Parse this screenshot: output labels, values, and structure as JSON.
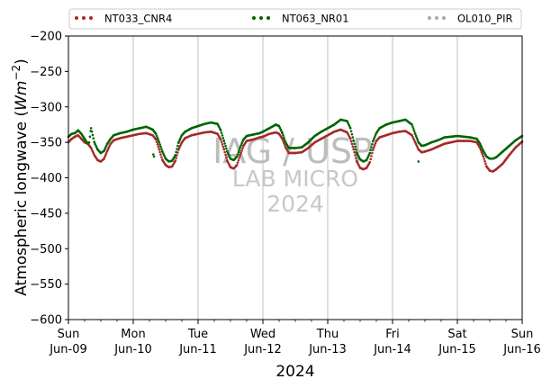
{
  "chart_data": {
    "type": "scatter",
    "xlabel": "2024",
    "ylabel_main": "Atmospheric longwave (",
    "ylabel_unit_W": "W",
    "ylabel_unit_m": "m",
    "ylabel_unit_exp": "−2",
    "ylabel_close": ")",
    "ylim": [
      -600,
      -200
    ],
    "xlim_days": [
      0,
      7
    ],
    "yticks": [
      {
        "value": -200,
        "label": "−200"
      },
      {
        "value": -250,
        "label": "−250"
      },
      {
        "value": -300,
        "label": "−300"
      },
      {
        "value": -350,
        "label": "−350"
      },
      {
        "value": -400,
        "label": "−400"
      },
      {
        "value": -450,
        "label": "−450"
      },
      {
        "value": -500,
        "label": "−500"
      },
      {
        "value": -550,
        "label": "−550"
      },
      {
        "value": -600,
        "label": "−600"
      }
    ],
    "xticks": [
      {
        "day": 0,
        "top": "Sun",
        "bottom": "Jun-09"
      },
      {
        "day": 1,
        "top": "Mon",
        "bottom": "Jun-10"
      },
      {
        "day": 2,
        "top": "Tue",
        "bottom": "Jun-11"
      },
      {
        "day": 3,
        "top": "Wed",
        "bottom": "Jun-12"
      },
      {
        "day": 4,
        "top": "Thu",
        "bottom": "Jun-13"
      },
      {
        "day": 5,
        "top": "Fri",
        "bottom": "Jun-14"
      },
      {
        "day": 6,
        "top": "Sat",
        "bottom": "Jun-15"
      },
      {
        "day": 7,
        "top": "Sun",
        "bottom": "Jun-16"
      }
    ],
    "grid": "vertical",
    "legend_placement": "top",
    "series": [
      {
        "name": "NT033_CNR4",
        "color": "#a52a2a",
        "points": [
          [
            0.0,
            -350
          ],
          [
            0.05,
            -345
          ],
          [
            0.1,
            -342
          ],
          [
            0.15,
            -340
          ],
          [
            0.2,
            -345
          ],
          [
            0.25,
            -350
          ],
          [
            0.3,
            -352
          ],
          [
            0.35,
            -358
          ],
          [
            0.4,
            -368
          ],
          [
            0.45,
            -375
          ],
          [
            0.5,
            -377
          ],
          [
            0.55,
            -373
          ],
          [
            0.6,
            -362
          ],
          [
            0.65,
            -352
          ],
          [
            0.7,
            -347
          ],
          [
            0.8,
            -344
          ],
          [
            0.9,
            -342
          ],
          [
            1.0,
            -340
          ],
          [
            1.1,
            -338
          ],
          [
            1.2,
            -337
          ],
          [
            1.3,
            -340
          ],
          [
            1.35,
            -346
          ],
          [
            1.4,
            -360
          ],
          [
            1.45,
            -375
          ],
          [
            1.5,
            -382
          ],
          [
            1.55,
            -385
          ],
          [
            1.6,
            -384
          ],
          [
            1.65,
            -376
          ],
          [
            1.7,
            -360
          ],
          [
            1.75,
            -350
          ],
          [
            1.8,
            -344
          ],
          [
            1.9,
            -340
          ],
          [
            2.0,
            -338
          ],
          [
            2.1,
            -336
          ],
          [
            2.2,
            -335
          ],
          [
            2.3,
            -338
          ],
          [
            2.35,
            -346
          ],
          [
            2.4,
            -360
          ],
          [
            2.45,
            -376
          ],
          [
            2.5,
            -385
          ],
          [
            2.55,
            -387
          ],
          [
            2.6,
            -382
          ],
          [
            2.65,
            -368
          ],
          [
            2.7,
            -355
          ],
          [
            2.75,
            -348
          ],
          [
            2.85,
            -346
          ],
          [
            2.95,
            -343
          ],
          [
            3.0,
            -342
          ],
          [
            3.1,
            -338
          ],
          [
            3.2,
            -336
          ],
          [
            3.25,
            -338
          ],
          [
            3.3,
            -345
          ],
          [
            3.35,
            -357
          ],
          [
            3.4,
            -365
          ],
          [
            3.5,
            -365
          ],
          [
            3.6,
            -364
          ],
          [
            3.7,
            -358
          ],
          [
            3.8,
            -350
          ],
          [
            3.9,
            -345
          ],
          [
            4.0,
            -340
          ],
          [
            4.1,
            -335
          ],
          [
            4.2,
            -332
          ],
          [
            4.3,
            -336
          ],
          [
            4.35,
            -345
          ],
          [
            4.4,
            -360
          ],
          [
            4.45,
            -377
          ],
          [
            4.5,
            -386
          ],
          [
            4.55,
            -388
          ],
          [
            4.6,
            -386
          ],
          [
            4.65,
            -378
          ],
          [
            4.7,
            -360
          ],
          [
            4.75,
            -348
          ],
          [
            4.8,
            -343
          ],
          [
            4.9,
            -340
          ],
          [
            5.0,
            -337
          ],
          [
            5.1,
            -335
          ],
          [
            5.2,
            -334
          ],
          [
            5.3,
            -340
          ],
          [
            5.35,
            -350
          ],
          [
            5.4,
            -360
          ],
          [
            5.45,
            -364
          ],
          [
            5.5,
            -363
          ],
          [
            5.6,
            -360
          ],
          [
            5.7,
            -356
          ],
          [
            5.8,
            -352
          ],
          [
            5.9,
            -350
          ],
          [
            6.0,
            -348
          ],
          [
            6.1,
            -348
          ],
          [
            6.2,
            -348
          ],
          [
            6.3,
            -350
          ],
          [
            6.35,
            -358
          ],
          [
            6.4,
            -370
          ],
          [
            6.45,
            -384
          ],
          [
            6.5,
            -390
          ],
          [
            6.55,
            -391
          ],
          [
            6.6,
            -388
          ],
          [
            6.7,
            -380
          ],
          [
            6.8,
            -368
          ],
          [
            6.9,
            -357
          ],
          [
            7.0,
            -349
          ]
        ]
      },
      {
        "name": "NT063_NR01",
        "color": "#006400",
        "points": [
          [
            0.0,
            -342
          ],
          [
            0.05,
            -338
          ],
          [
            0.1,
            -337
          ],
          [
            0.15,
            -333
          ],
          [
            0.2,
            -338
          ],
          [
            0.25,
            -345
          ],
          [
            0.3,
            -352
          ],
          [
            0.32,
            -350
          ],
          [
            0.35,
            -330
          ],
          [
            0.4,
            -350
          ],
          [
            0.45,
            -360
          ],
          [
            0.5,
            -365
          ],
          [
            0.55,
            -362
          ],
          [
            0.6,
            -352
          ],
          [
            0.65,
            -345
          ],
          [
            0.7,
            -340
          ],
          [
            0.8,
            -337
          ],
          [
            0.9,
            -335
          ],
          [
            1.0,
            -332
          ],
          [
            1.1,
            -330
          ],
          [
            1.2,
            -328
          ],
          [
            1.3,
            -332
          ],
          [
            1.35,
            -338
          ],
          [
            1.4,
            -350
          ],
          [
            1.45,
            -363
          ],
          [
            1.5,
            -373
          ],
          [
            1.55,
            -377
          ],
          [
            1.6,
            -376
          ],
          [
            1.65,
            -368
          ],
          [
            1.7,
            -350
          ],
          [
            1.75,
            -340
          ],
          [
            1.8,
            -335
          ],
          [
            1.9,
            -330
          ],
          [
            2.0,
            -327
          ],
          [
            2.1,
            -324
          ],
          [
            2.2,
            -322
          ],
          [
            2.3,
            -324
          ],
          [
            2.35,
            -333
          ],
          [
            2.4,
            -348
          ],
          [
            2.45,
            -363
          ],
          [
            2.5,
            -373
          ],
          [
            2.55,
            -375
          ],
          [
            2.6,
            -370
          ],
          [
            2.65,
            -357
          ],
          [
            2.7,
            -346
          ],
          [
            2.75,
            -341
          ],
          [
            2.85,
            -339
          ],
          [
            2.95,
            -337
          ],
          [
            3.0,
            -335
          ],
          [
            3.1,
            -330
          ],
          [
            3.2,
            -325
          ],
          [
            3.25,
            -327
          ],
          [
            3.3,
            -337
          ],
          [
            3.35,
            -350
          ],
          [
            3.4,
            -358
          ],
          [
            3.5,
            -358
          ],
          [
            3.6,
            -357
          ],
          [
            3.7,
            -350
          ],
          [
            3.8,
            -341
          ],
          [
            3.9,
            -335
          ],
          [
            4.0,
            -330
          ],
          [
            4.1,
            -325
          ],
          [
            4.2,
            -318
          ],
          [
            4.3,
            -320
          ],
          [
            4.35,
            -330
          ],
          [
            4.4,
            -348
          ],
          [
            4.45,
            -365
          ],
          [
            4.5,
            -374
          ],
          [
            4.55,
            -377
          ],
          [
            4.6,
            -375
          ],
          [
            4.65,
            -365
          ],
          [
            4.7,
            -348
          ],
          [
            4.75,
            -337
          ],
          [
            4.8,
            -330
          ],
          [
            4.9,
            -325
          ],
          [
            5.0,
            -322
          ],
          [
            5.1,
            -320
          ],
          [
            5.2,
            -318
          ],
          [
            5.3,
            -325
          ],
          [
            5.35,
            -338
          ],
          [
            5.4,
            -350
          ],
          [
            5.45,
            -355
          ],
          [
            5.5,
            -354
          ],
          [
            5.6,
            -350
          ],
          [
            5.7,
            -347
          ],
          [
            5.8,
            -343
          ],
          [
            5.9,
            -342
          ],
          [
            6.0,
            -341
          ],
          [
            6.1,
            -342
          ],
          [
            6.2,
            -343
          ],
          [
            6.3,
            -345
          ],
          [
            6.35,
            -352
          ],
          [
            6.4,
            -362
          ],
          [
            6.45,
            -370
          ],
          [
            6.5,
            -373
          ],
          [
            6.55,
            -373
          ],
          [
            6.6,
            -371
          ],
          [
            6.7,
            -363
          ],
          [
            6.8,
            -355
          ],
          [
            6.9,
            -347
          ],
          [
            7.0,
            -341
          ],
          [
            1.31,
            -367
          ],
          [
            1.32,
            -370
          ],
          [
            5.4,
            -377
          ]
        ]
      },
      {
        "name": "OL010_PIR",
        "color": "#a9a9a9",
        "points": []
      }
    ]
  },
  "watermark": {
    "line1": "IAG / USP",
    "line2": "LAB MICRO",
    "line3": "2024"
  }
}
